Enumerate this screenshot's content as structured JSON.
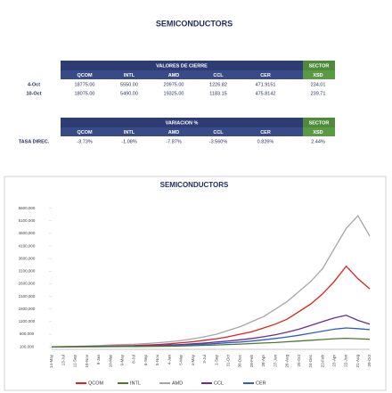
{
  "title": "SEMICONDUCTORS",
  "tables": [
    {
      "title": "VALORES DE CIERRE",
      "sector": "SECTOR",
      "columns": [
        "QCOM",
        "INTL",
        "AMD",
        "CCL",
        "CER",
        "XSD"
      ],
      "rows": [
        [
          "4-Oct",
          "18775.00",
          "5550.00",
          "20975.00",
          "1226.82",
          "471.9151",
          "234.01"
        ],
        [
          "10-Oct",
          "18075.00",
          "5490.00",
          "19325.00",
          "1183.15",
          "475.8142",
          "239.71"
        ]
      ]
    },
    {
      "title": "VARIACION %",
      "sector": "SECTOR",
      "columns": [
        "QCOM",
        "INTL",
        "AMD",
        "CCL",
        "CER",
        "XSD"
      ],
      "rows": [
        [
          "TASA DIREC.",
          "-3.73%",
          "-1.08%",
          "-7.87%",
          "-3.560%",
          "0.826%",
          "2.44%"
        ]
      ]
    }
  ],
  "chart_data": {
    "type": "line",
    "title": "SEMICONDUCTORS",
    "legend": "bottom",
    "grid": false,
    "categories": [
      "14-May",
      "13-Jul",
      "11-Sep",
      "10-Nov",
      "9-Jan",
      "10-Mar",
      "9-May",
      "8-Jul",
      "6-Sep",
      "5-Nov",
      "4-Jan",
      "5-Mar",
      "4-May",
      "3-Jul",
      "1-Sep",
      "31-Oct",
      "30-Dec",
      "28-Feb",
      "28-Apr",
      "27-Jun",
      "26-Aug",
      "25-Oct",
      "24-Dec",
      "22-Feb",
      "23-Apr",
      "22-Jun",
      "21-Aug",
      "20-Oct"
    ],
    "ylim": [
      0,
      5800000
    ],
    "yticks": [
      {
        "value": 100000,
        "label": "100,000"
      },
      {
        "value": 600000,
        "label": "600,000"
      },
      {
        "value": 1100000,
        "label": "1100,000"
      },
      {
        "value": 1600000,
        "label": "1600,000"
      },
      {
        "value": 2100000,
        "label": "2100,000"
      },
      {
        "value": 2600000,
        "label": "2600,000"
      },
      {
        "value": 3100000,
        "label": "3100,000"
      },
      {
        "value": 3600000,
        "label": "3600,000"
      },
      {
        "value": 4100000,
        "label": "4100,000"
      },
      {
        "value": 4600000,
        "label": "4600,000"
      },
      {
        "value": 5100000,
        "label": "5100,000"
      },
      {
        "value": 5600000,
        "label": "5600,000"
      }
    ],
    "series": [
      {
        "name": "QCOM",
        "color": "#e0201c",
        "values": [
          100000,
          105000,
          110000,
          115000,
          120000,
          130000,
          140000,
          150000,
          170000,
          190000,
          220000,
          260000,
          300000,
          360000,
          420000,
          500000,
          600000,
          700000,
          850000,
          1000000,
          1200000,
          1500000,
          1800000,
          2200000,
          2700000,
          3300000,
          2800000,
          2400000
        ]
      },
      {
        "name": "INTL",
        "color": "#4c7a2c",
        "values": [
          100000,
          100000,
          101000,
          102000,
          103000,
          105000,
          108000,
          110000,
          115000,
          120000,
          125000,
          135000,
          145000,
          160000,
          175000,
          190000,
          210000,
          230000,
          250000,
          270000,
          300000,
          330000,
          360000,
          390000,
          420000,
          440000,
          420000,
          400000
        ]
      },
      {
        "name": "AMD",
        "color": "#a6a6a6",
        "values": [
          100000,
          110000,
          120000,
          130000,
          150000,
          170000,
          190000,
          200000,
          230000,
          260000,
          300000,
          350000,
          420000,
          500000,
          600000,
          750000,
          900000,
          1100000,
          1300000,
          1600000,
          1900000,
          2300000,
          2700000,
          3200000,
          4000000,
          4800000,
          5300000,
          4500000
        ]
      },
      {
        "name": "CCL",
        "color": "#6a2c91",
        "values": [
          100000,
          102000,
          105000,
          108000,
          112000,
          118000,
          125000,
          130000,
          140000,
          155000,
          170000,
          190000,
          220000,
          250000,
          290000,
          330000,
          380000,
          430000,
          500000,
          580000,
          680000,
          800000,
          950000,
          1100000,
          1250000,
          1350000,
          1150000,
          1000000
        ]
      },
      {
        "name": "CER",
        "color": "#2f5bd0",
        "values": [
          100000,
          101000,
          103000,
          105000,
          108000,
          112000,
          117000,
          122000,
          130000,
          140000,
          150000,
          165000,
          185000,
          205000,
          230000,
          260000,
          290000,
          330000,
          380000,
          430000,
          490000,
          560000,
          640000,
          720000,
          800000,
          850000,
          820000,
          780000
        ]
      }
    ]
  }
}
